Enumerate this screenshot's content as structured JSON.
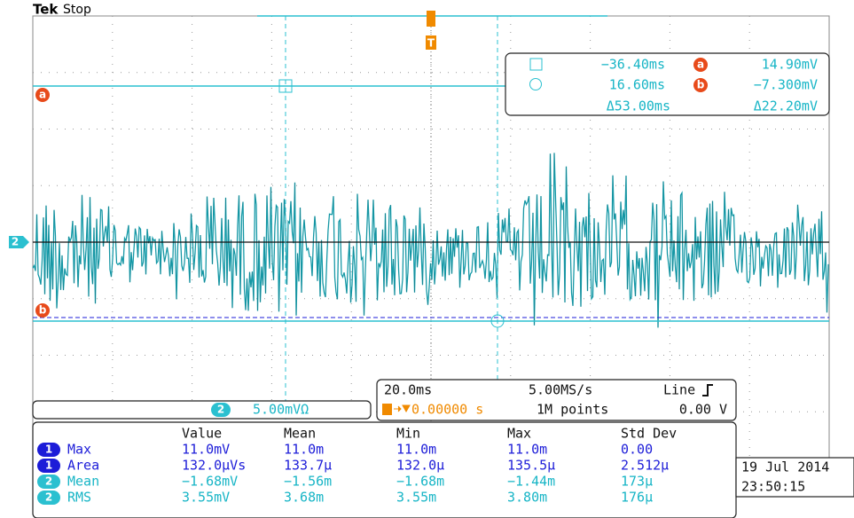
{
  "header": {
    "brand": "Tek",
    "status": "Stop"
  },
  "markers": {
    "channel": "2",
    "cursor_a": "a",
    "cursor_b": "b",
    "trigger": "T"
  },
  "cursor_readout": {
    "t1": "−36.40ms",
    "a_label": "a",
    "v1": "14.90mV",
    "t2": "16.60ms",
    "b_label": "b",
    "v2": "−7.300mV",
    "dt": "Δ53.00ms",
    "dv": "Δ22.20mV"
  },
  "channel_scale": {
    "channel": "2",
    "scale": "5.00mVΩ"
  },
  "timebase": {
    "time_per_div": "20.0ms",
    "sample_rate": "5.00MS/s",
    "trigger_source": "Line",
    "trigger_position": "0.00000 s",
    "record_length": "1M points",
    "trigger_level": "0.00 V"
  },
  "measurements": {
    "columns": [
      "Value",
      "Mean",
      "Min",
      "Max",
      "Std Dev"
    ],
    "rows": [
      {
        "channel": "1",
        "name": "Max",
        "cells": [
          "11.0mV",
          "11.0m",
          "11.0m",
          "11.0m",
          "0.00"
        ]
      },
      {
        "channel": "1",
        "name": "Area",
        "cells": [
          "132.0µVs",
          "133.7µ",
          "132.0µ",
          "135.5µ",
          "2.512µ"
        ]
      },
      {
        "channel": "2",
        "name": "Mean",
        "cells": [
          "−1.68mV",
          "−1.56m",
          "−1.68m",
          "−1.44m",
          "173µ"
        ]
      },
      {
        "channel": "2",
        "name": "RMS",
        "cells": [
          "3.55mV",
          "3.68m",
          "3.55m",
          "3.80m",
          "176µ"
        ]
      }
    ]
  },
  "clock": {
    "date": "19 Jul 2014",
    "time": "23:50:15"
  }
}
